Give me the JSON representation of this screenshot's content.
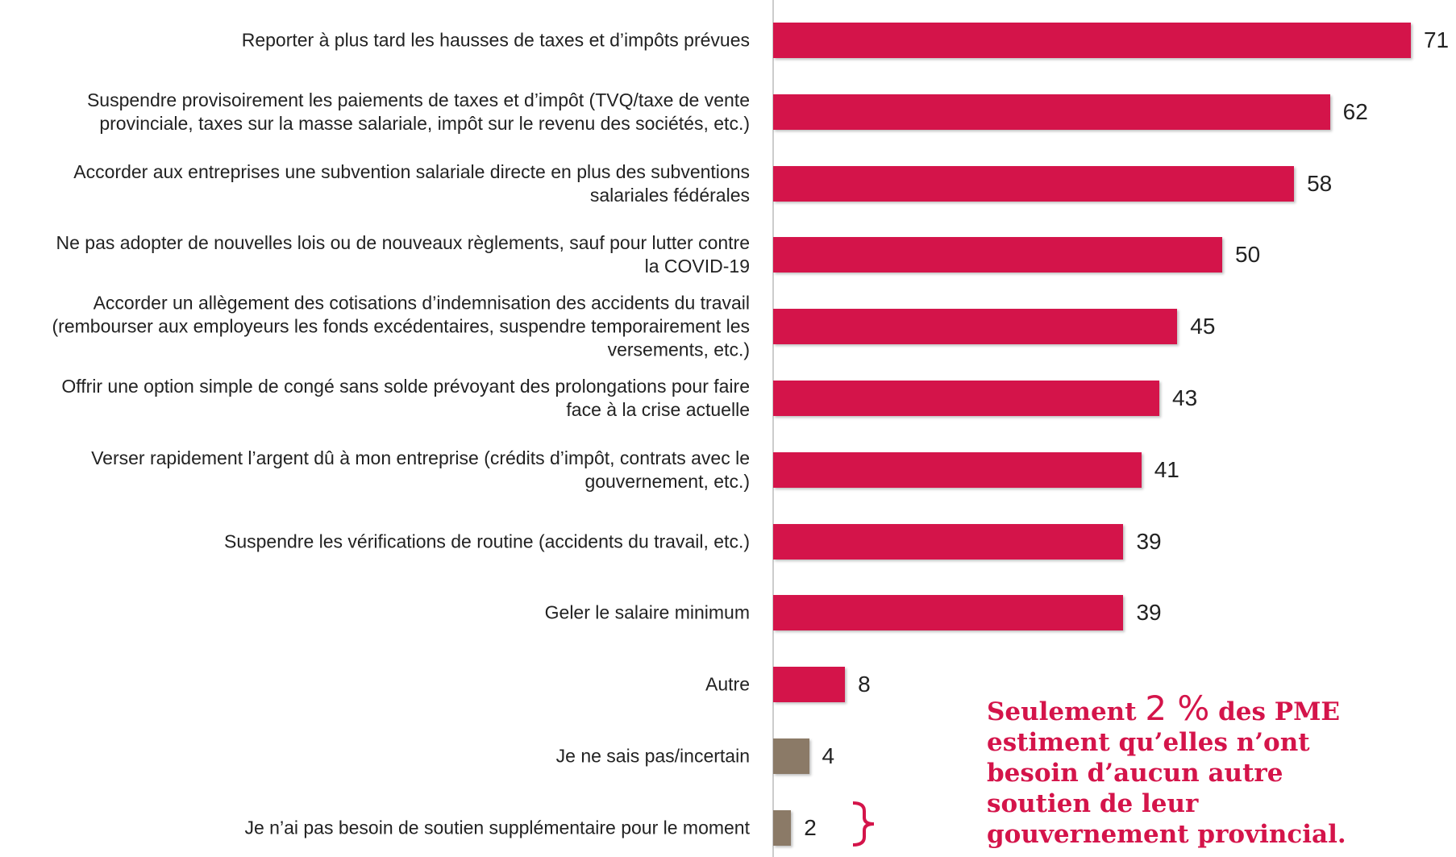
{
  "chart_data": {
    "type": "barh",
    "categories": [
      "Reporter à plus tard les hausses de taxes et d’impôts prévues",
      "Suspendre provisoirement les paiements de taxes et d’impôt (TVQ/taxe de vente\nprovinciale, taxes sur la masse salariale, impôt sur le revenu des sociétés, etc.)",
      "Accorder aux entreprises une subvention salariale directe en plus des subventions\nsalariales fédérales",
      "Ne pas adopter de nouvelles lois ou de nouveaux règlements, sauf pour lutter contre\nla COVID-19",
      "Accorder un allègement des cotisations d’indemnisation des accidents du travail\n(rembourser aux employeurs les fonds excédentaires, suspendre temporairement les\nversements, etc.)",
      "Offrir une option simple de congé sans solde prévoyant des prolongations pour faire\nface à la crise actuelle",
      "Verser rapidement l’argent dû à mon entreprise (crédits d’impôt, contrats avec le\ngouvernement, etc.)",
      "Suspendre les vérifications de routine (accidents du travail, etc.)",
      "Geler le salaire minimum",
      "Autre",
      "Je ne sais pas/incertain",
      "Je n’ai pas besoin de soutien supplémentaire pour le moment"
    ],
    "values": [
      71,
      62,
      58,
      50,
      45,
      43,
      41,
      39,
      39,
      8,
      4,
      2
    ],
    "colors": [
      "#d4144a",
      "#d4144a",
      "#d4144a",
      "#d4144a",
      "#d4144a",
      "#d4144a",
      "#d4144a",
      "#d4144a",
      "#d4144a",
      "#d4144a",
      "#8b7a67",
      "#8b7a67"
    ],
    "xlim": [
      0,
      75
    ],
    "annotation": {
      "before": "Seulement",
      "highlight": "2 %",
      "after": "des PME\nestiment qu’elles n’ont\nbesoin d’aucun autre\nsoutien de leur\ngouvernement provincial.",
      "color": "#d4144a"
    }
  }
}
